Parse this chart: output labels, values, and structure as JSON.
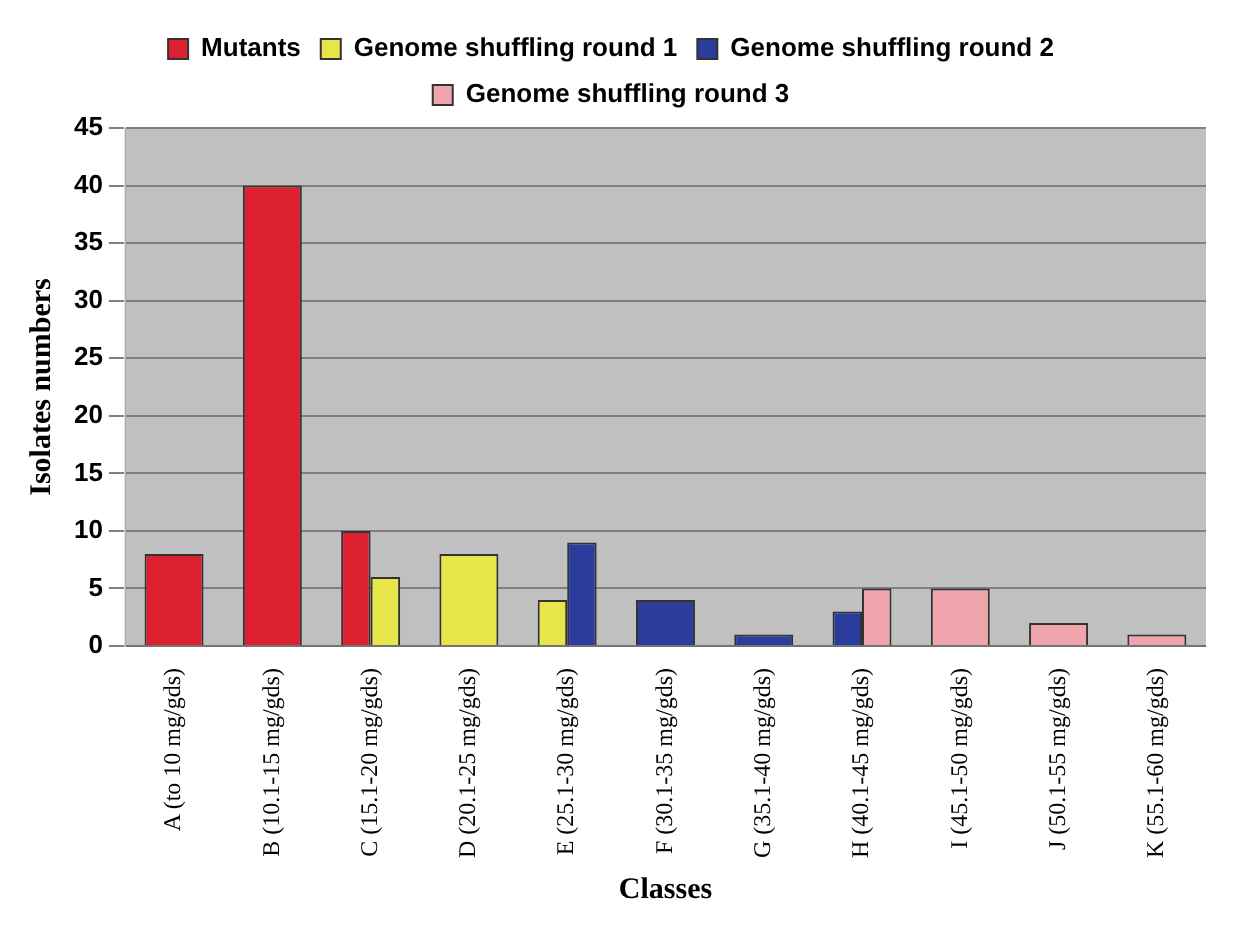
{
  "chart_data": {
    "type": "bar",
    "xlabel": "Classes",
    "ylabel": "Isolates numbers",
    "categories": [
      "A (to 10 mg/gds)",
      "B (10.1-15 mg/gds)",
      "C (15.1-20 mg/gds)",
      "D (20.1-25 mg/gds)",
      "E (25.1-30 mg/gds)",
      "F (30.1-35 mg/gds)",
      "G (35.1-40 mg/gds)",
      "H (40.1-45 mg/gds)",
      "I (45.1-50 mg/gds)",
      "J (50.1-55 mg/gds)",
      "K (55.1-60 mg/gds)"
    ],
    "series": [
      {
        "name": "Mutants",
        "color": "#dd2030",
        "values": [
          8,
          40,
          10,
          null,
          null,
          null,
          null,
          null,
          null,
          null,
          null
        ]
      },
      {
        "name": "Genome shuffling round 1",
        "color": "#e6e64a",
        "values": [
          null,
          null,
          6,
          8,
          4,
          null,
          null,
          null,
          null,
          null,
          null
        ]
      },
      {
        "name": "Genome shuffling round 2",
        "color": "#2a3c9c",
        "values": [
          null,
          null,
          null,
          null,
          9,
          4,
          1,
          3,
          null,
          null,
          null
        ]
      },
      {
        "name": "Genome shuffling round 3",
        "color": "#f0a4ac",
        "values": [
          null,
          null,
          null,
          null,
          null,
          null,
          null,
          5,
          5,
          2,
          1
        ]
      }
    ],
    "ylim": [
      0,
      45
    ],
    "yticks": [
      0,
      5,
      10,
      15,
      20,
      25,
      30,
      35,
      40,
      45
    ],
    "grid": "y",
    "legend": "top"
  }
}
